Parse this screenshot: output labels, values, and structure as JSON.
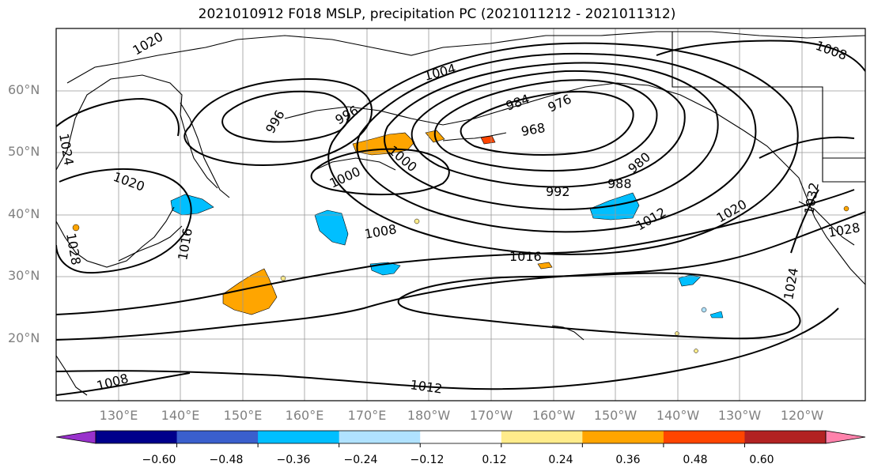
{
  "title": "2021010912 F018 MSLP, precipitation PC (2021011212 - 2021011312)",
  "lat_labels": [
    "60°N",
    "50°N",
    "40°N",
    "30°N",
    "20°N"
  ],
  "lon_labels": [
    "130°E",
    "140°E",
    "150°E",
    "160°E",
    "170°E",
    "180°W",
    "170°W",
    "160°W",
    "150°W",
    "140°W",
    "130°W",
    "120°W"
  ],
  "contour_labels": [
    "1020",
    "1004",
    "1008",
    "996",
    "996",
    "984",
    "976",
    "968",
    "980",
    "988",
    "992",
    "1000",
    "1000",
    "1024",
    "1020",
    "1016",
    "1028",
    "1008",
    "1016",
    "1012",
    "1020",
    "1032",
    "1028",
    "1024",
    "1008",
    "1012"
  ],
  "colorbar": {
    "tick_labels": [
      "−0.60",
      "−0.48",
      "−0.36",
      "−0.24",
      "−0.12",
      "0.12",
      "0.24",
      "0.36",
      "0.48",
      "0.60"
    ],
    "colors": [
      "#9932CC",
      "#00008B",
      "#3A5FCD",
      "#00BFFF",
      "#B0E2FF",
      "#FFFFFF",
      "#FFEC8B",
      "#FFA500",
      "#FF4500",
      "#B22222",
      "#FF82AB"
    ]
  }
}
